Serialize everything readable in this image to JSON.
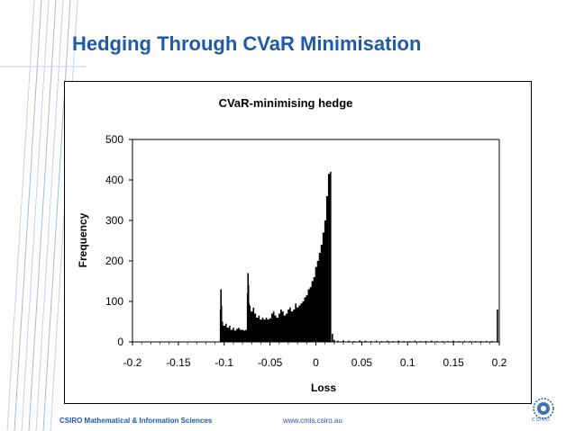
{
  "slide": {
    "title": "Hedging Through CVaR Minimisation",
    "footer_left": "CSIRO Mathematical & Information Sciences",
    "footer_center": "www.cmis.csiro.au",
    "logo_text": "CSIRO",
    "accent_color": "#1f5aa6"
  },
  "chart_data": {
    "type": "bar",
    "title": "CVaR-minimising hedge",
    "xlabel": "Loss",
    "ylabel": "Frequency",
    "xlim": [
      -0.2,
      0.2
    ],
    "ylim": [
      0,
      500
    ],
    "x_ticks": [
      "-0.2",
      "-0.15",
      "-0.1",
      "-0.05",
      "0",
      "0.05",
      "0.1",
      "0.15",
      "0.2"
    ],
    "y_ticks": [
      "0",
      "100",
      "200",
      "300",
      "400",
      "500"
    ],
    "grid": "horizontal top line only",
    "bar_color": "#000000",
    "bins": [
      {
        "x": -0.104,
        "y": 80
      },
      {
        "x": -0.1035,
        "y": 130
      },
      {
        "x": -0.103,
        "y": 90
      },
      {
        "x": -0.102,
        "y": 50
      },
      {
        "x": -0.1,
        "y": 40
      },
      {
        "x": -0.098,
        "y": 45
      },
      {
        "x": -0.096,
        "y": 35
      },
      {
        "x": -0.094,
        "y": 40
      },
      {
        "x": -0.092,
        "y": 30
      },
      {
        "x": -0.09,
        "y": 35
      },
      {
        "x": -0.088,
        "y": 28
      },
      {
        "x": -0.086,
        "y": 32
      },
      {
        "x": -0.084,
        "y": 35
      },
      {
        "x": -0.082,
        "y": 30
      },
      {
        "x": -0.08,
        "y": 30
      },
      {
        "x": -0.078,
        "y": 28
      },
      {
        "x": -0.076,
        "y": 30
      },
      {
        "x": -0.0745,
        "y": 120
      },
      {
        "x": -0.074,
        "y": 170
      },
      {
        "x": -0.0735,
        "y": 140
      },
      {
        "x": -0.073,
        "y": 95
      },
      {
        "x": -0.072,
        "y": 90
      },
      {
        "x": -0.07,
        "y": 75
      },
      {
        "x": -0.068,
        "y": 85
      },
      {
        "x": -0.066,
        "y": 70
      },
      {
        "x": -0.064,
        "y": 60
      },
      {
        "x": -0.062,
        "y": 65
      },
      {
        "x": -0.06,
        "y": 55
      },
      {
        "x": -0.058,
        "y": 60
      },
      {
        "x": -0.056,
        "y": 55
      },
      {
        "x": -0.054,
        "y": 60
      },
      {
        "x": -0.052,
        "y": 55
      },
      {
        "x": -0.05,
        "y": 58
      },
      {
        "x": -0.048,
        "y": 70
      },
      {
        "x": -0.046,
        "y": 75
      },
      {
        "x": -0.044,
        "y": 65
      },
      {
        "x": -0.042,
        "y": 60
      },
      {
        "x": -0.04,
        "y": 70
      },
      {
        "x": -0.038,
        "y": 80
      },
      {
        "x": -0.036,
        "y": 75
      },
      {
        "x": -0.034,
        "y": 65
      },
      {
        "x": -0.032,
        "y": 70
      },
      {
        "x": -0.03,
        "y": 80
      },
      {
        "x": -0.028,
        "y": 85
      },
      {
        "x": -0.026,
        "y": 75
      },
      {
        "x": -0.024,
        "y": 80
      },
      {
        "x": -0.022,
        "y": 95
      },
      {
        "x": -0.02,
        "y": 85
      },
      {
        "x": -0.018,
        "y": 90
      },
      {
        "x": -0.016,
        "y": 95
      },
      {
        "x": -0.014,
        "y": 100
      },
      {
        "x": -0.012,
        "y": 110
      },
      {
        "x": -0.01,
        "y": 115
      },
      {
        "x": -0.008,
        "y": 130
      },
      {
        "x": -0.006,
        "y": 135
      },
      {
        "x": -0.004,
        "y": 150
      },
      {
        "x": -0.002,
        "y": 160
      },
      {
        "x": 0.0,
        "y": 185
      },
      {
        "x": 0.002,
        "y": 200
      },
      {
        "x": 0.004,
        "y": 220
      },
      {
        "x": 0.006,
        "y": 240
      },
      {
        "x": 0.008,
        "y": 270
      },
      {
        "x": 0.01,
        "y": 300
      },
      {
        "x": 0.012,
        "y": 360
      },
      {
        "x": 0.014,
        "y": 415
      },
      {
        "x": 0.016,
        "y": 420
      },
      {
        "x": 0.018,
        "y": 20
      },
      {
        "x": 0.02,
        "y": 5
      },
      {
        "x": 0.024,
        "y": 3
      },
      {
        "x": 0.03,
        "y": 4
      },
      {
        "x": 0.036,
        "y": 3
      },
      {
        "x": 0.042,
        "y": 2
      },
      {
        "x": 0.048,
        "y": 4
      },
      {
        "x": 0.054,
        "y": 3
      },
      {
        "x": 0.06,
        "y": 2
      },
      {
        "x": 0.066,
        "y": 3
      },
      {
        "x": 0.072,
        "y": 2
      },
      {
        "x": 0.078,
        "y": 3
      },
      {
        "x": 0.084,
        "y": 2
      },
      {
        "x": 0.09,
        "y": 3
      },
      {
        "x": 0.096,
        "y": 2
      },
      {
        "x": 0.102,
        "y": 2
      },
      {
        "x": 0.108,
        "y": 3
      },
      {
        "x": 0.114,
        "y": 2
      },
      {
        "x": 0.12,
        "y": 2
      },
      {
        "x": 0.126,
        "y": 3
      },
      {
        "x": 0.132,
        "y": 2
      },
      {
        "x": 0.138,
        "y": 2
      },
      {
        "x": 0.144,
        "y": 2
      },
      {
        "x": 0.15,
        "y": 3
      },
      {
        "x": 0.156,
        "y": 2
      },
      {
        "x": 0.162,
        "y": 2
      },
      {
        "x": 0.168,
        "y": 2
      },
      {
        "x": 0.174,
        "y": 2
      },
      {
        "x": 0.18,
        "y": 2
      },
      {
        "x": 0.186,
        "y": 2
      },
      {
        "x": 0.192,
        "y": 2
      },
      {
        "x": 0.198,
        "y": 80
      }
    ]
  }
}
